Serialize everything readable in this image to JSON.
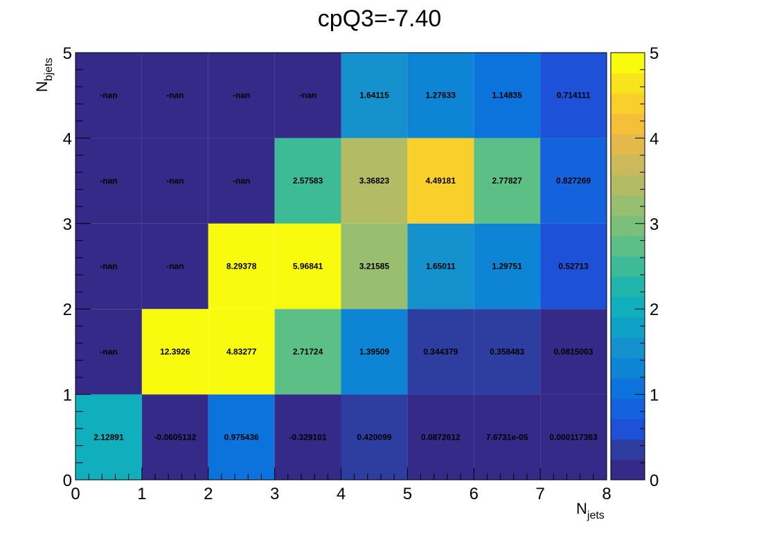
{
  "chart_data": {
    "type": "heatmap",
    "title": "cpQ3=-7.40",
    "xlabel": "N",
    "xlabel_sub": "jets",
    "ylabel": "N",
    "ylabel_sub": "bjets",
    "x_edges": [
      0,
      1,
      2,
      3,
      4,
      5,
      6,
      7,
      8
    ],
    "y_edges": [
      0,
      1,
      2,
      3,
      4,
      5
    ],
    "xlim": [
      0,
      8
    ],
    "ylim": [
      0,
      5
    ],
    "x_ticks": [
      "0",
      "1",
      "2",
      "3",
      "4",
      "5",
      "6",
      "7",
      "8"
    ],
    "y_ticks": [
      "0",
      "1",
      "2",
      "3",
      "4",
      "5"
    ],
    "z_range": [
      0,
      5
    ],
    "z_ticks": [
      "0",
      "1",
      "2",
      "3",
      "4",
      "5"
    ],
    "palette": [
      "#352a87",
      "#2e3ea0",
      "#1c51d8",
      "#1462dc",
      "#0c73dc",
      "#0d84d4",
      "#1592cd",
      "#0fa2c7",
      "#11aebe",
      "#20b5ad",
      "#3cbb96",
      "#5bbf86",
      "#7bbf7a",
      "#98be6f",
      "#b3bc65",
      "#ccb95b",
      "#e3b94c",
      "#f5bf3a",
      "#f9d02b",
      "#f7e41d",
      "#f9fb0e"
    ],
    "nan_color": "#352a87",
    "cells": [
      [
        "2.12891",
        "-0.0605132",
        "0.975436",
        "-0.329101",
        "0.420099",
        "0.0872612",
        "7.6731e-05",
        "0.000117363"
      ],
      [
        "-nan",
        "12.3926",
        "4.83277",
        "2.71724",
        "1.39509",
        "0.344379",
        "0.358483",
        "0.0815003"
      ],
      [
        "-nan",
        "-nan",
        "8.29378",
        "5.96841",
        "3.21585",
        "1.65011",
        "1.29751",
        "0.52713"
      ],
      [
        "-nan",
        "-nan",
        "-nan",
        "2.57583",
        "3.36823",
        "4.49181",
        "2.77827",
        "0.827269"
      ],
      [
        "-nan",
        "-nan",
        "-nan",
        "-nan",
        "1.64115",
        "1.27633",
        "1.14835",
        "0.714111"
      ]
    ]
  }
}
